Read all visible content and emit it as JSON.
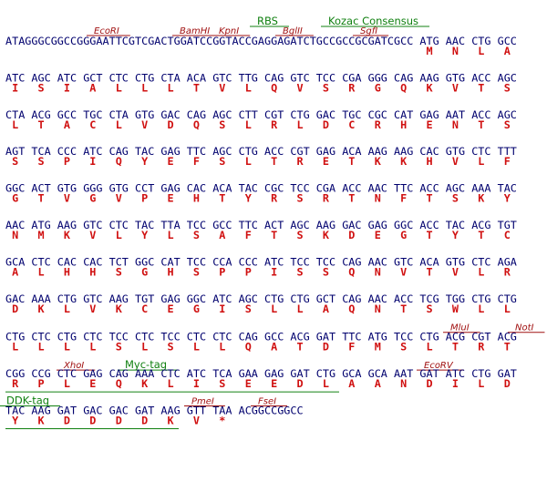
{
  "lines": [
    {
      "labels": [
        "RBS",
        "Kozac Consensus",
        "EcoRI",
        "BamHI",
        "KpnI",
        "BglII",
        "SgfI"
      ],
      "seq": "ATAGGGCGGCCGGGAATTCGTCGACTGGATCCGGTACCGAGGAGATCTGCCGCCGCGATCGCC ATG AAC CTG GCC",
      "aa": [
        "M",
        "N",
        "L",
        "A"
      ]
    },
    {
      "labels": [],
      "seq": "ATC AGC ATC GCT CTC CTG CTA ACA GTC TTG CAG GTC TCC CGA GGG CAG AAG GTG ACC AGC",
      "aa": [
        "I",
        "S",
        "I",
        "A",
        "L",
        "L",
        "L",
        "T",
        "V",
        "L",
        "Q",
        "V",
        "S",
        "R",
        "G",
        "Q",
        "K",
        "V",
        "T",
        "S"
      ]
    },
    {
      "labels": [],
      "seq": "CTA ACG GCC TGC CTA GTG GAC CAG AGC CTT CGT CTG GAC TGC CGC CAT GAG AAT ACC AGC",
      "aa": [
        "L",
        "T",
        "A",
        "C",
        "L",
        "V",
        "D",
        "Q",
        "S",
        "L",
        "R",
        "L",
        "D",
        "C",
        "R",
        "H",
        "E",
        "N",
        "T",
        "S"
      ]
    },
    {
      "labels": [],
      "seq": "AGT TCA CCC ATC CAG TAC GAG TTC AGC CTG ACC CGT GAG ACA AAG AAG CAC GTG CTC TTT",
      "aa": [
        "S",
        "S",
        "P",
        "I",
        "Q",
        "Y",
        "E",
        "F",
        "S",
        "L",
        "T",
        "R",
        "E",
        "T",
        "K",
        "K",
        "H",
        "V",
        "L",
        "F"
      ]
    },
    {
      "labels": [],
      "seq": "GGC ACT GTG GGG GTG CCT GAG CAC ACA TAC CGC TCC CGA ACC AAC TTC ACC AGC AAA TAC",
      "aa": [
        "G",
        "T",
        "V",
        "G",
        "V",
        "P",
        "E",
        "H",
        "T",
        "Y",
        "R",
        "S",
        "R",
        "T",
        "N",
        "F",
        "T",
        "S",
        "K",
        "Y"
      ]
    },
    {
      "labels": [],
      "seq": "AAC ATG AAG GTC CTC TAC TTA TCC GCC TTC ACT AGC AAG GAC GAG GGC ACC TAC ACG TGT",
      "aa": [
        "N",
        "M",
        "K",
        "V",
        "L",
        "Y",
        "L",
        "S",
        "A",
        "F",
        "T",
        "S",
        "K",
        "D",
        "E",
        "G",
        "T",
        "Y",
        "T",
        "C"
      ]
    },
    {
      "labels": [],
      "seq": "GCA CTC CAC CAC TCT GGC CAT TCC CCA CCC ATC TCC TCC CAG AAC GTC ACA GTG CTC AGA",
      "aa": [
        "A",
        "L",
        "H",
        "H",
        "S",
        "G",
        "H",
        "S",
        "P",
        "P",
        "I",
        "S",
        "S",
        "Q",
        "N",
        "V",
        "T",
        "V",
        "L",
        "R"
      ]
    },
    {
      "labels": [],
      "seq": "GAC AAA CTG GTC AAG TGT GAG GGC ATC AGC CTG CTG GCT CAG AAC ACC TCG TGG CTG CTG",
      "aa": [
        "D",
        "K",
        "L",
        "V",
        "K",
        "C",
        "E",
        "G",
        "I",
        "S",
        "L",
        "L",
        "A",
        "Q",
        "N",
        "T",
        "S",
        "W",
        "L",
        "L"
      ]
    },
    {
      "labels": [
        "MluI",
        "NotI"
      ],
      "seq": "CTG CTC CTG CTC TCC CTC TCC CTC CTC CAG GCC ACG GAT TTC ATG TCC CTG ACG CGT ACG",
      "aa": [
        "L",
        "L",
        "L",
        "L",
        "S",
        "L",
        "S",
        "L",
        "L",
        "Q",
        "A",
        "T",
        "D",
        "F",
        "M",
        "S",
        "L",
        "T",
        "R",
        "T"
      ]
    },
    {
      "labels": [
        "XhoI",
        "Myc-tag",
        "EcoRV"
      ],
      "seq": "CGG CCG CTC GAG CAG AAA CTC ATC TCA GAA GAG GAT CTG GCA GCA AAT GAT ATC CTG GAT",
      "aa": [
        "R",
        "P",
        "L",
        "E",
        "Q",
        "K",
        "L",
        "I",
        "S",
        "E",
        "E",
        "D",
        "L",
        "A",
        "A",
        "N",
        "D",
        "I",
        "L",
        "D"
      ]
    },
    {
      "labels": [
        "DDK-tag",
        "PmeI",
        "FseI"
      ],
      "seq": "TAC AAG GAT GAC GAC GAT AAG GTT TAA ACGGCCGGCC",
      "aa": [
        "Y",
        "K",
        "D",
        "D",
        "D",
        "D",
        "K",
        "V",
        "*"
      ]
    }
  ]
}
